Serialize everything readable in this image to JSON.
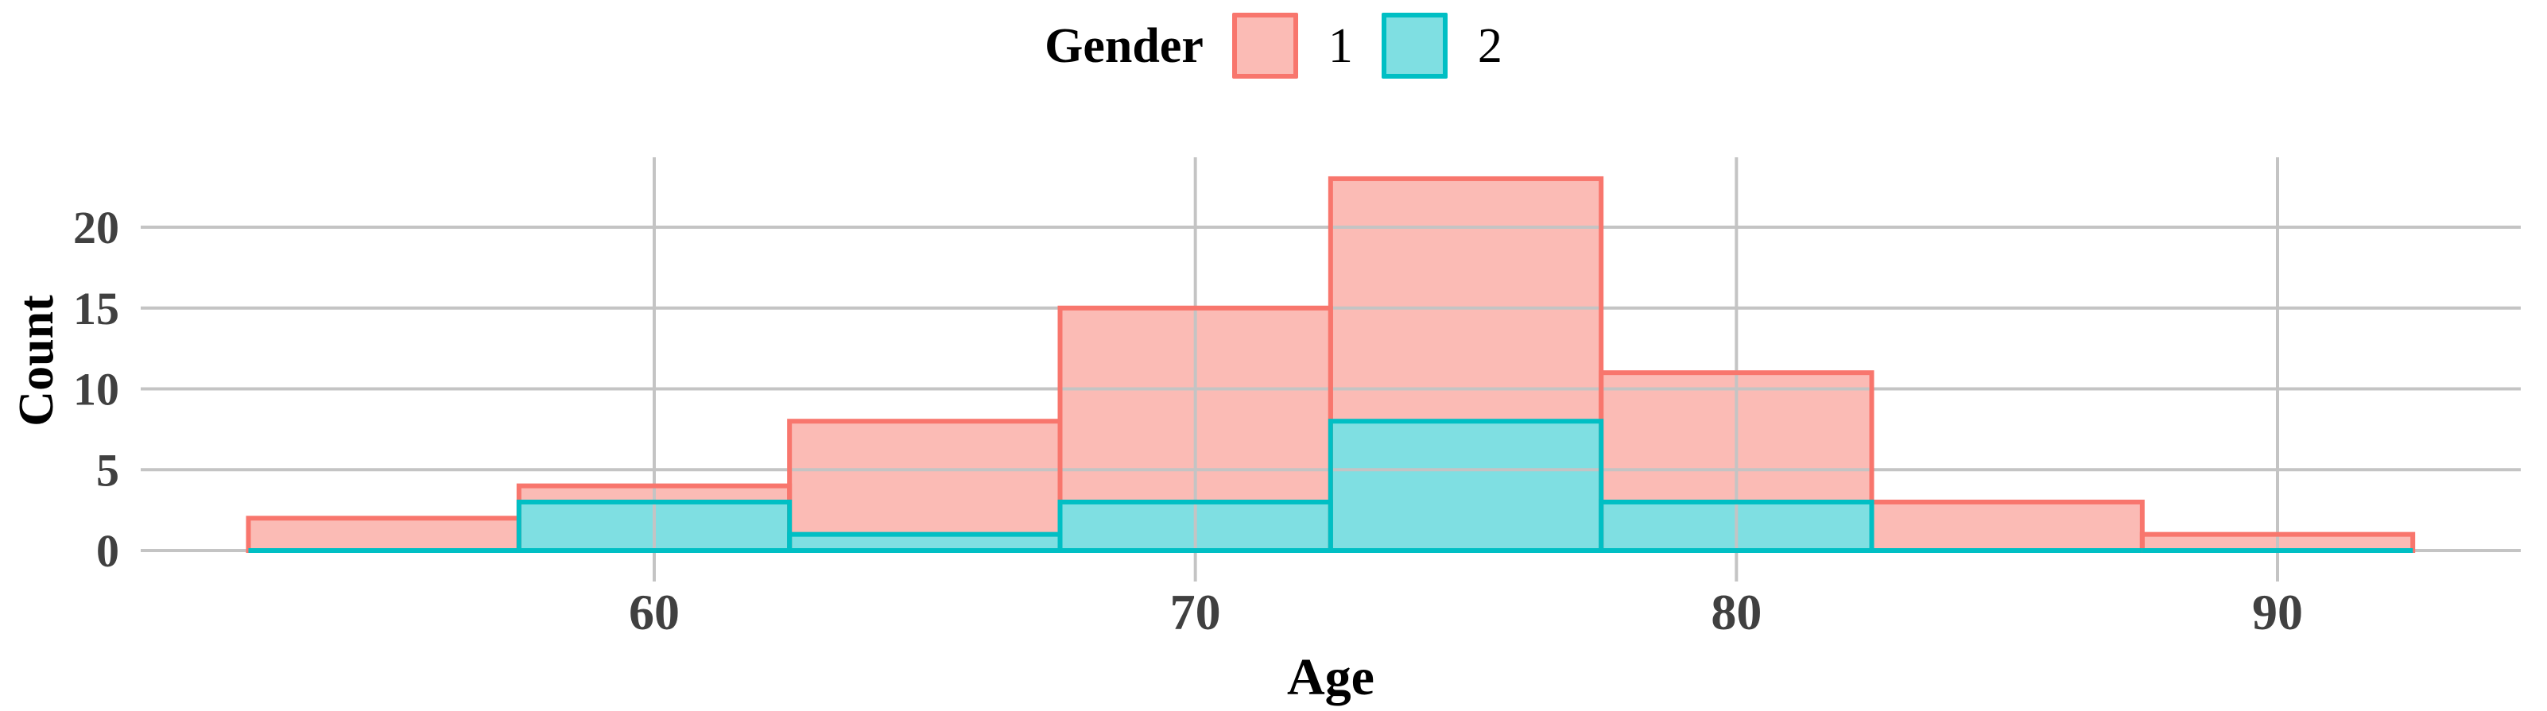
{
  "chart_data": {
    "type": "histogram-overlay",
    "title": "",
    "xlabel": "Age",
    "ylabel": "Count",
    "legend_title": "Gender",
    "legend_position": "top",
    "bin_width": 5,
    "bin_edges": [
      52.5,
      57.5,
      62.5,
      67.5,
      72.5,
      77.5,
      82.5,
      87.5,
      92.5
    ],
    "bin_centers": [
      55,
      60,
      65,
      70,
      75,
      80,
      85,
      90
    ],
    "series": [
      {
        "name": "1",
        "values": [
          2,
          4,
          8,
          15,
          23,
          11,
          3,
          1
        ],
        "fill": "#FBBBB5",
        "stroke": "#F8766D"
      },
      {
        "name": "2",
        "values": [
          0,
          3,
          1,
          3,
          8,
          3,
          0,
          0
        ],
        "fill": "#7FDFE2",
        "stroke": "#00BFC4"
      }
    ],
    "x_ticks": [
      60,
      70,
      80,
      90
    ],
    "y_ticks": [
      0,
      5,
      10,
      15,
      20
    ],
    "xlim": [
      50.5,
      94.5
    ],
    "ylim": [
      0,
      24
    ],
    "grid": true,
    "colors": {
      "gridline": "#C4C4C4",
      "axis_text": "#404040",
      "title_text": "#000000",
      "background": "#FFFFFF"
    }
  },
  "legend": {
    "title": "Gender",
    "items": [
      {
        "label": "1"
      },
      {
        "label": "2"
      }
    ]
  }
}
